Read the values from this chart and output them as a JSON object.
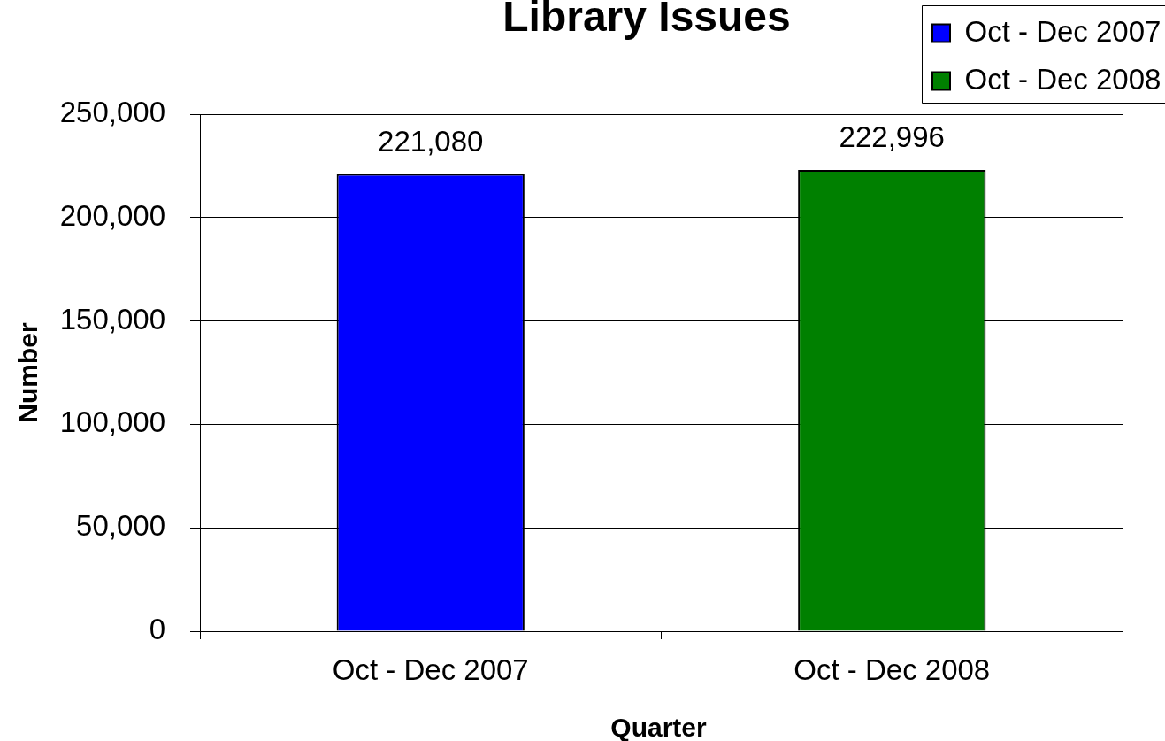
{
  "chart_data": {
    "type": "bar",
    "title": "Library Issues",
    "xlabel": "Quarter",
    "ylabel": "Number",
    "categories": [
      "Oct - Dec 2007",
      "Oct - Dec 2008"
    ],
    "series": [
      {
        "name": "Oct - Dec 2007",
        "color": "#0000ff",
        "values": [
          221080,
          null
        ],
        "value_labels": [
          "221,080",
          null
        ]
      },
      {
        "name": "Oct - Dec 2008",
        "color": "#008000",
        "values": [
          null,
          222996
        ],
        "value_labels": [
          null,
          "222,996"
        ]
      }
    ],
    "ylim": [
      0,
      250000
    ],
    "yticks": [
      0,
      {
        "value": 50000,
        "label": "50,000"
      },
      {
        "value": 100000,
        "label": "100,000"
      },
      {
        "value": 150000,
        "label": "150,000"
      },
      {
        "value": 200000,
        "label": "200,000"
      },
      {
        "value": 250000,
        "label": "250,000"
      }
    ],
    "grid": "y",
    "legend": "top right"
  }
}
